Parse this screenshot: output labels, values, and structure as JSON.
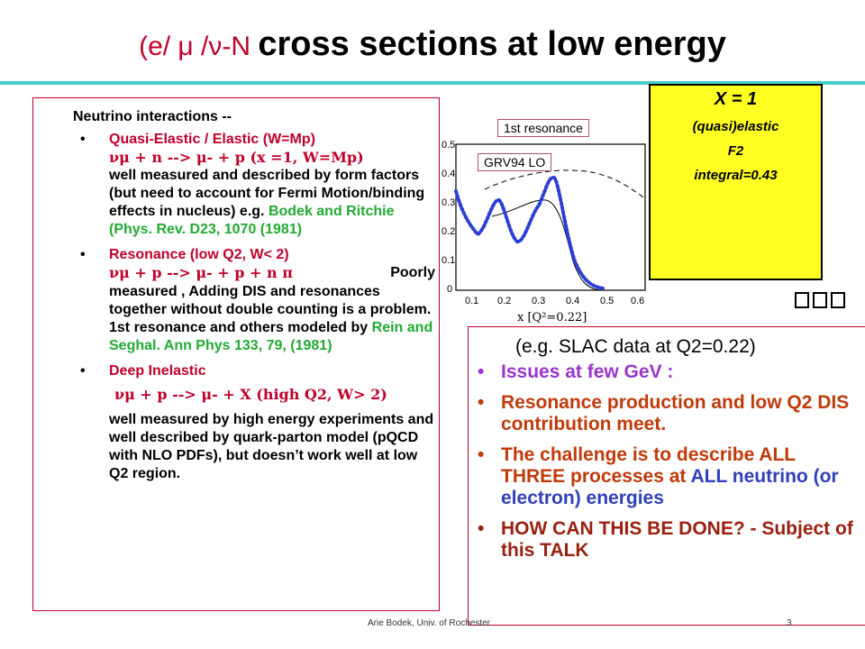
{
  "title": {
    "prefix": "(e/ μ /ν-N ",
    "main": "cross sections at low energy"
  },
  "left_panel": {
    "heading": "Neutrino interactions --",
    "items": [
      {
        "line1": "Quasi-Elastic / Elastic     (W=Mp)",
        "line2": "νμ + n    -->  μ- + p     (x =1, W=Mp)",
        "line3": "well  measured and described by form factors (but need to account for Fermi Motion/binding effects in nucleus)   e.g.",
        "ref1": "Bodek and Ritchie",
        "ref2": "(Phys. Rev. D23, 1070 (1981)"
      },
      {
        "line1": "Resonance          (low Q2, W< 2)",
        "line2": "νμ + p --> μ- + p + n π",
        "line2b": "Poorly",
        "line3": "measured , Adding  DIS and resonances together without double counting is a problem. 1st resonance and others modeled by",
        "ref1": "Rein and Seghal. Ann Phys 133, 79, (1981)"
      },
      {
        "line1": "Deep Inelastic",
        "line2": "νμ + p    --> μ- + X     (high Q2, W> 2)",
        "line3": "well measured by high energy experiments and well described by quark-parton model (pQCD with NLO PDFs), but doesn’t work well at low Q2 region."
      }
    ]
  },
  "plot": {
    "resonance_label": "1st resonance",
    "grv_label": "GRV94 LO",
    "y_ticks": [
      "0.5",
      "0.4",
      "0.3",
      "0.2",
      "0.1",
      "0"
    ],
    "x_ticks": [
      "0.1",
      "0.2",
      "0.3",
      "0.4",
      "0.5",
      "0.6"
    ],
    "x_axis_label": "x  [Q²=0.22]"
  },
  "yellow_box": {
    "line1": "X = 1",
    "line2": "(quasi)elastic",
    "line3": "F2",
    "line4": "integral=0.43"
  },
  "right_panel": {
    "subtitle": "(e.g. SLAC data  at Q2=0.22)",
    "items": [
      {
        "text": "Issues at few GeV :"
      },
      {
        "text": "Resonance production  and low Q2 DIS contribution meet."
      },
      {
        "text_a": "The challenge is to describe ALL THREE processes at",
        "text_b": "ALL neutrino (or electron) energies"
      },
      {
        "text": "HOW CAN THIS  BE DONE? - Subject of this TALK"
      }
    ]
  },
  "footer": {
    "left": "Arie Bodek, Univ. of Rochester",
    "right": "3"
  },
  "colors": {
    "accent_red": "#c0002a",
    "green": "#22aa33",
    "rule": "#46d2c8",
    "yellow": "#ffff22",
    "purple": "#9a35cc",
    "brown": "#c03a0a",
    "blue": "#3040b8"
  }
}
